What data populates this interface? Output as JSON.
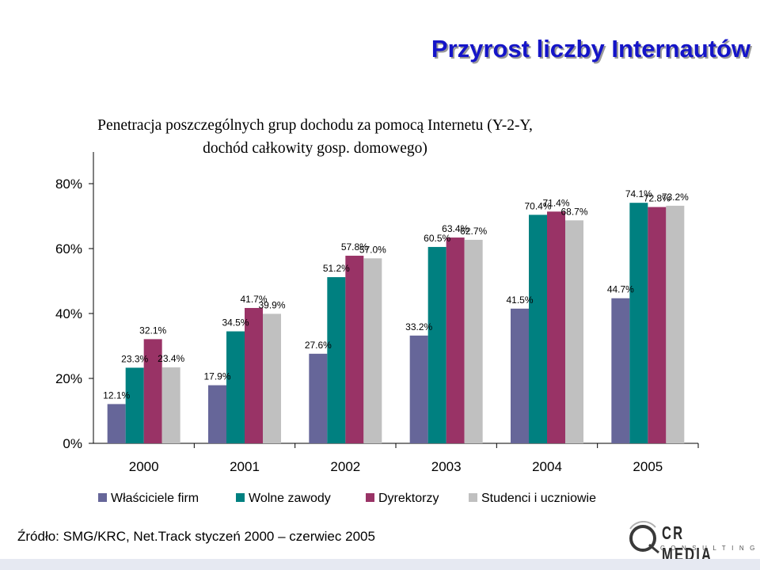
{
  "slide": {
    "title": "Przyrost liczby Internautów",
    "subtitle_line1": "Penetracja poszczególnych grup dochodu za pomocą Internetu (Y-2-Y,",
    "subtitle_line2": "dochód całkowity gosp. domowego)",
    "source": "Źródło: SMG/KRC, Net.Track styczeń 2000 – czerwiec 2005",
    "logo_main": "CR MEDIA",
    "logo_sub": "CONSULTING"
  },
  "chart_data": {
    "type": "bar",
    "title": "",
    "xlabel": "",
    "ylabel": "",
    "ylim": [
      0,
      80
    ],
    "yticks": [
      0,
      20,
      40,
      60,
      80
    ],
    "ytick_labels": [
      "0%",
      "20%",
      "40%",
      "60%",
      "80%"
    ],
    "grid": false,
    "legend_position": "bottom",
    "categories": [
      "2000",
      "2001",
      "2002",
      "2003",
      "2004",
      "2005"
    ],
    "series": [
      {
        "name": "Właściciele firm",
        "color": "#666699",
        "values": [
          12.1,
          17.9,
          27.6,
          33.2,
          41.5,
          44.7
        ]
      },
      {
        "name": "Wolne zawody",
        "color": "#008080",
        "values": [
          23.3,
          34.5,
          51.2,
          60.5,
          70.4,
          74.1
        ]
      },
      {
        "name": "Dyrektorzy",
        "color": "#993366",
        "values": [
          32.1,
          41.7,
          57.8,
          63.4,
          71.4,
          72.8
        ]
      },
      {
        "name": "Studenci i uczniowie",
        "color": "#c0c0c0",
        "values": [
          23.4,
          39.9,
          57.0,
          62.7,
          68.7,
          73.2
        ]
      }
    ],
    "data_labels": [
      [
        "12.1%",
        "17.9%",
        "27.6%",
        "33.2%",
        "41.5%",
        "44.7%"
      ],
      [
        "23.3%",
        "34.5%",
        "51.2%",
        "60.5%",
        "70.4%",
        "74.1%"
      ],
      [
        "32.1%",
        "41.7%",
        "57.8%",
        "63.4%",
        "71.4%",
        "72.8%"
      ],
      [
        "23.4%",
        "39.9%",
        "57.0%",
        "62.7%",
        "68.7%",
        "73.2%"
      ]
    ]
  }
}
